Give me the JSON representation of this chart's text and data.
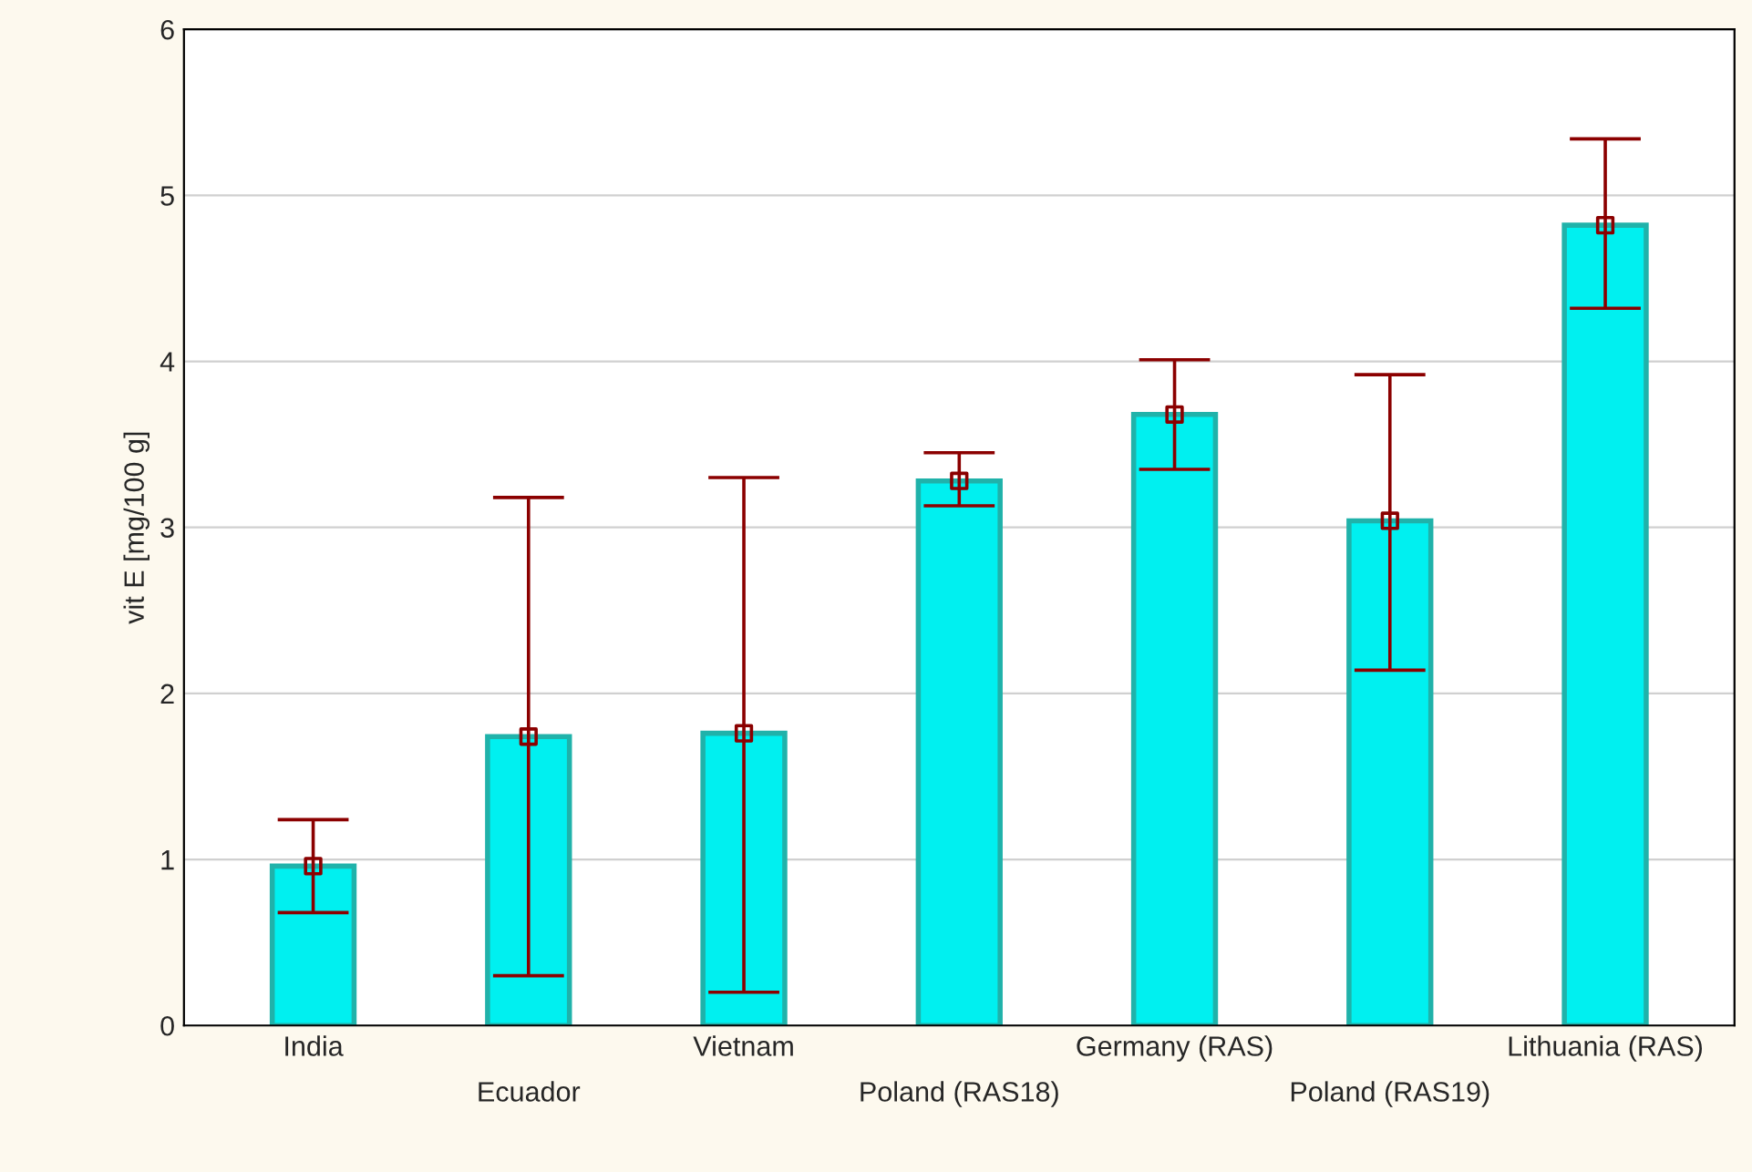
{
  "chart_data": {
    "type": "bar",
    "ylabel": "vit E [mg/100 g]",
    "categories": [
      "India",
      "Ecuador",
      "Vietnam",
      "Poland (RAS18)",
      "Germany (RAS)",
      "Poland (RAS19)",
      "Lithuania (RAS)"
    ],
    "series": [
      {
        "color": "#00f0f0",
        "values": [
          0.96,
          1.74,
          1.76,
          3.28,
          3.68,
          3.04,
          4.82
        ],
        "errors": [
          [
            0.68,
            1.24
          ],
          [
            0.3,
            3.18
          ],
          [
            0.2,
            3.3
          ],
          [
            3.13,
            3.45
          ],
          [
            3.35,
            4.01
          ],
          [
            2.14,
            3.92
          ],
          [
            4.32,
            5.34
          ]
        ]
      },
      {
        "type": "scatter",
        "color": "#8b0000",
        "marker": "square",
        "x": [
          "India",
          "Ecuador",
          "Vietnam",
          "Poland (RAS18)",
          "Germany (RAS)",
          "Poland (RAS19)",
          "Lithuania (RAS)"
        ],
        "values": [
          0.96,
          1.74,
          1.76,
          3.28,
          3.68,
          3.04,
          4.82
        ]
      }
    ],
    "ylim": [
      0,
      6
    ],
    "yticks": [
      0,
      1,
      2,
      3,
      4,
      5,
      6
    ],
    "grid": "y"
  }
}
